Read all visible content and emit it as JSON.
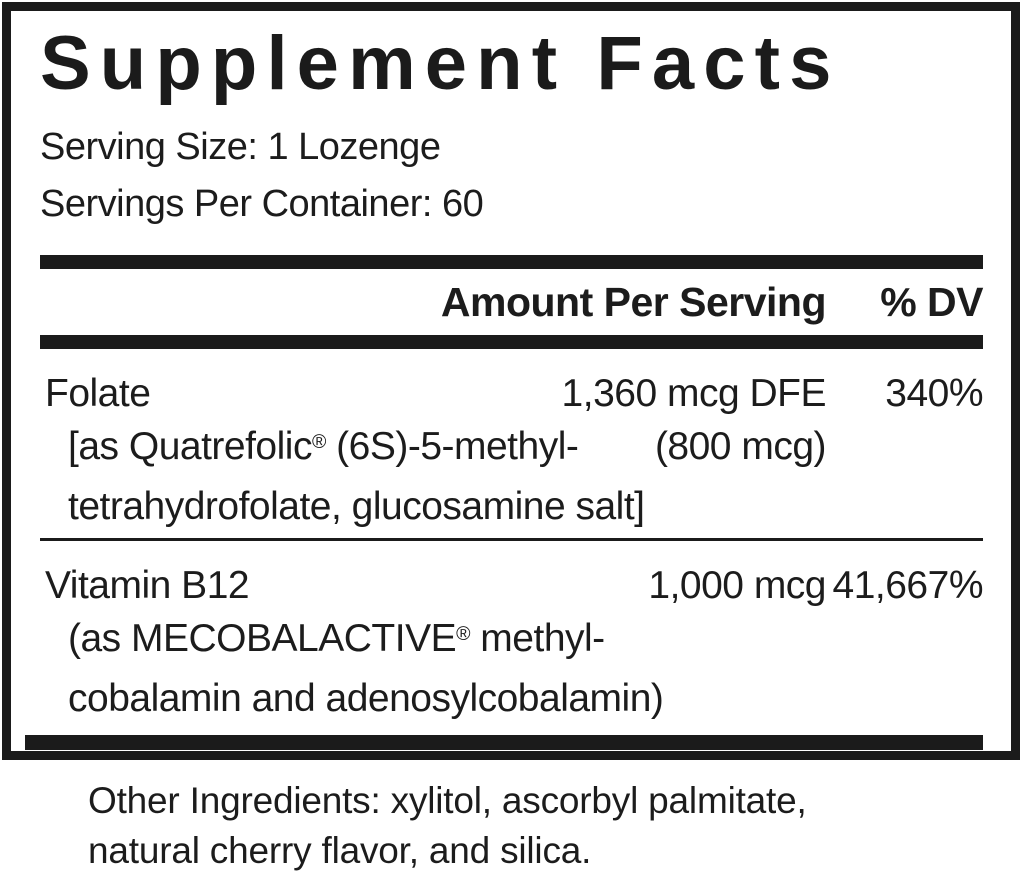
{
  "label": {
    "title": "Supplement Facts",
    "serving": {
      "size_label": "Serving Size:",
      "size_value": "1 Lozenge",
      "per_container_label": "Servings Per Container:",
      "per_container_value": "60"
    },
    "columns": {
      "amount": "Amount Per Serving",
      "dv": "% DV"
    },
    "nutrients": [
      {
        "name": "Folate",
        "amount": "1,360 mcg DFE",
        "dv": "340%",
        "detail_line1_pre": "[as Quatrefolic",
        "detail_line1_reg": "®",
        "detail_line1_post": " (6S)-5-methyl-",
        "detail_line1_amount": "(800 mcg)",
        "detail_line2": "tetrahydrofolate, glucosamine salt]"
      },
      {
        "name": "Vitamin B12",
        "amount": "1,000 mcg",
        "dv": "41,667%",
        "detail_line1_pre": "(as MECOBALACTIVE",
        "detail_line1_reg": "®",
        "detail_line1_post": " methyl-",
        "detail_line1_amount": "",
        "detail_line2": "cobalamin and adenosylcobalamin)"
      }
    ],
    "other_ingredients": {
      "line1": "Other Ingredients: xylitol, ascorbyl palmitate,",
      "line2": "natural cherry flavor, and silica."
    },
    "colors": {
      "ink": "#1b1b1b",
      "background": "#ffffff"
    }
  }
}
